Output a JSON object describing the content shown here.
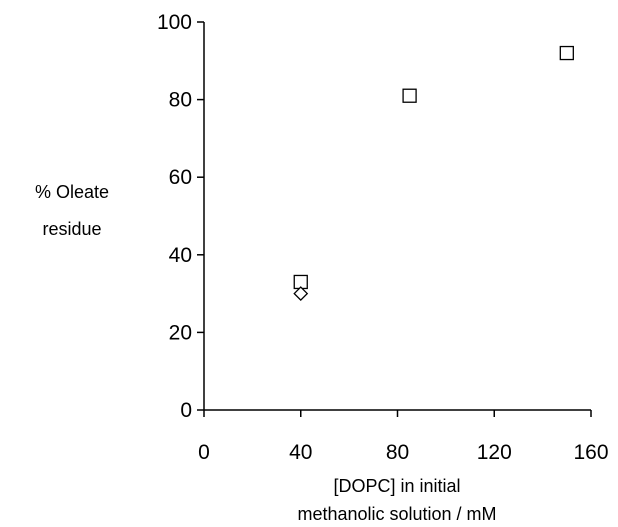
{
  "chart_data": {
    "type": "scatter",
    "title": "",
    "ylabel_lines": [
      "% Oleate",
      "residue"
    ],
    "xlabel_lines": [
      "[DOPC] in initial",
      "methanolic solution / mM"
    ],
    "xlim": [
      0,
      160
    ],
    "ylim": [
      0,
      100
    ],
    "x_ticks": [
      0,
      40,
      80,
      120,
      160
    ],
    "y_ticks": [
      0,
      20,
      40,
      60,
      80,
      100
    ],
    "grid": false,
    "legend": "none",
    "series": [
      {
        "marker": "square",
        "points": [
          {
            "x": 40,
            "y": 33
          },
          {
            "x": 85,
            "y": 81
          },
          {
            "x": 150,
            "y": 92
          }
        ]
      },
      {
        "marker": "diamond",
        "points": [
          {
            "x": 40,
            "y": 30
          }
        ]
      }
    ]
  }
}
